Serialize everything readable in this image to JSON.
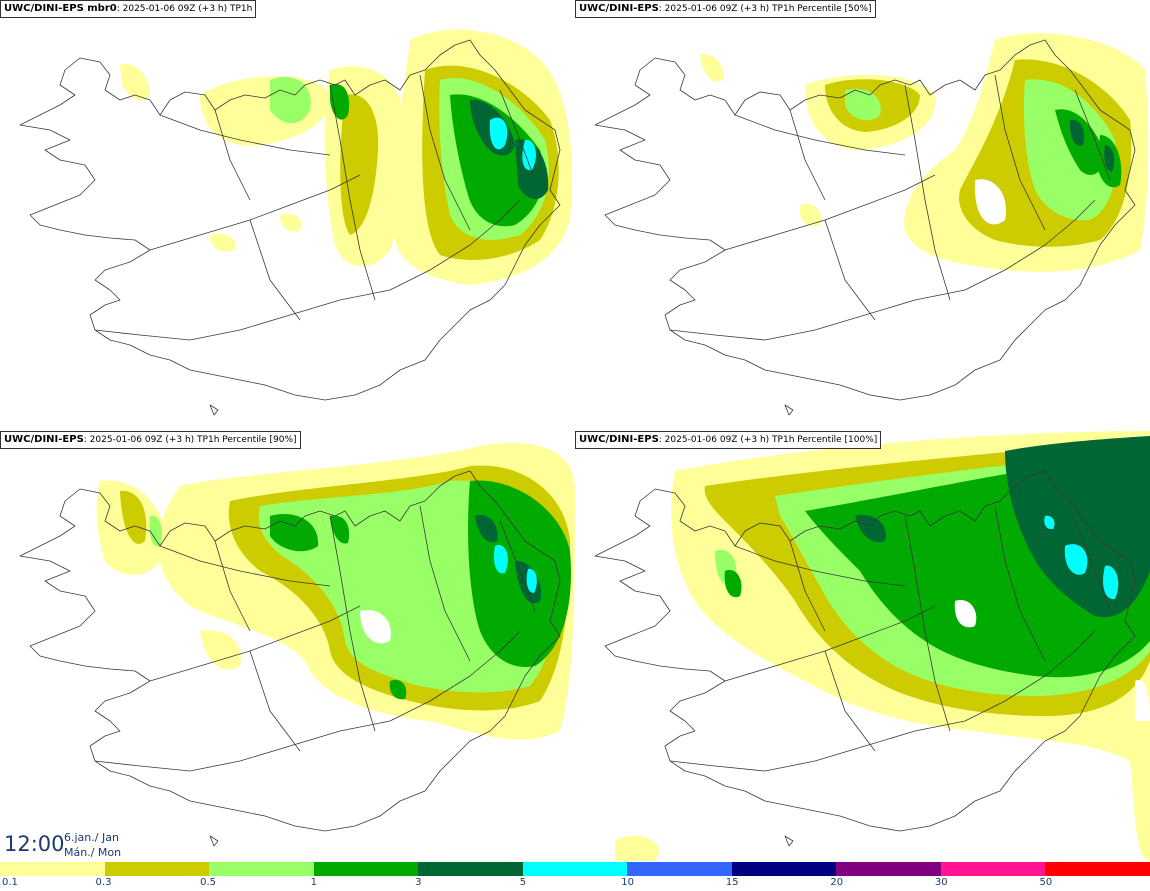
{
  "panels": [
    {
      "model": "UWC/DINI-EPS mbr0",
      "run": "2025-01-06 09Z (+3 h)",
      "field": "TP1h"
    },
    {
      "model": "UWC/DINI-EPS",
      "run": "2025-01-06 09Z (+3 h)",
      "field": "TP1h Percentile [50%]"
    },
    {
      "model": "UWC/DINI-EPS",
      "run": "2025-01-06 09Z (+3 h)",
      "field": "TP1h Percentile [90%]"
    },
    {
      "model": "UWC/DINI-EPS",
      "run": "2025-01-06 09Z (+3 h)",
      "field": "TP1h Percentile [100%]"
    }
  ],
  "valid_time": {
    "time": "12:00",
    "date": "6.jan./ Jan",
    "weekday": "Mán./ Mon"
  },
  "legend": {
    "colors": [
      "#ffff99",
      "#cccc00",
      "#99ff66",
      "#00aa00",
      "#006633",
      "#00ffff",
      "#3366ff",
      "#000080",
      "#800080",
      "#ff1493",
      "#ff0000"
    ],
    "labels": [
      "0.1",
      "0.3",
      "0.5",
      "1",
      "3",
      "5",
      "10",
      "15",
      "20",
      "30",
      "50"
    ]
  }
}
